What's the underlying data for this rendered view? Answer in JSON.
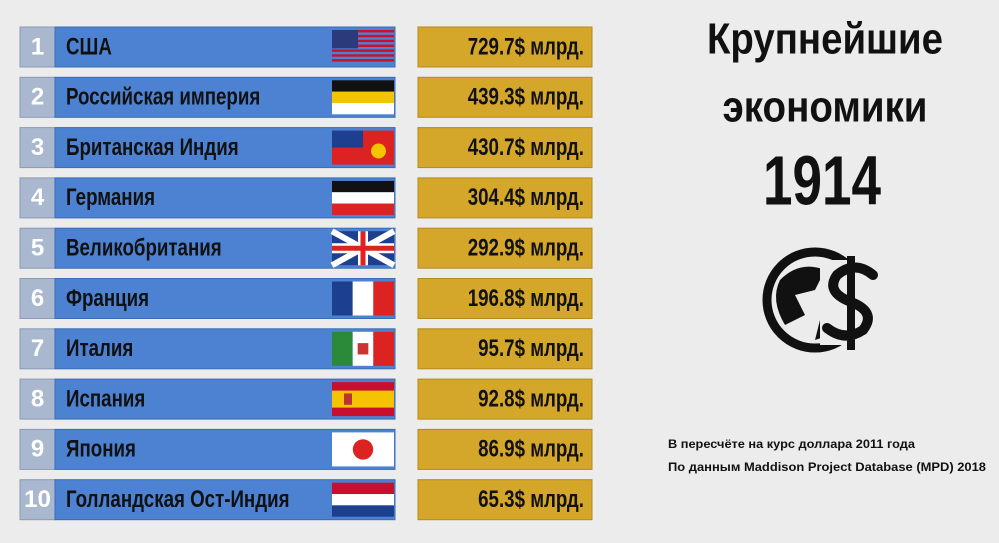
{
  "rows": [
    {
      "rank": 1,
      "country": "США",
      "value": "729.7$ млрд."
    },
    {
      "rank": 2,
      "country": "Российская империя",
      "value": "439.3$ млрд."
    },
    {
      "rank": 3,
      "country": "Британская Индия",
      "value": "430.7$ млрд."
    },
    {
      "rank": 4,
      "country": "Германия",
      "value": "304.4$ млрд."
    },
    {
      "rank": 5,
      "country": "Великобритания",
      "value": "292.9$ млрд."
    },
    {
      "rank": 6,
      "country": "Франция",
      "value": "196.8$ млрд."
    },
    {
      "rank": 7,
      "country": "Италия",
      "value": "95.7$ млрд."
    },
    {
      "rank": 8,
      "country": "Испания",
      "value": "92.8$ млрд."
    },
    {
      "rank": 9,
      "country": "Япония",
      "value": "86.9$ млрд."
    },
    {
      "rank": 10,
      "country": "Голландская Ост-Индия",
      "value": "65.3$ млрд."
    }
  ],
  "title": {
    "line1": "Крупнейшие",
    "line2": "экономики",
    "year": "1914"
  },
  "notes": [
    "В пересчёте на курс доллара 2011 года",
    "По данным Maddison Project Database (MPD) 2018"
  ]
}
